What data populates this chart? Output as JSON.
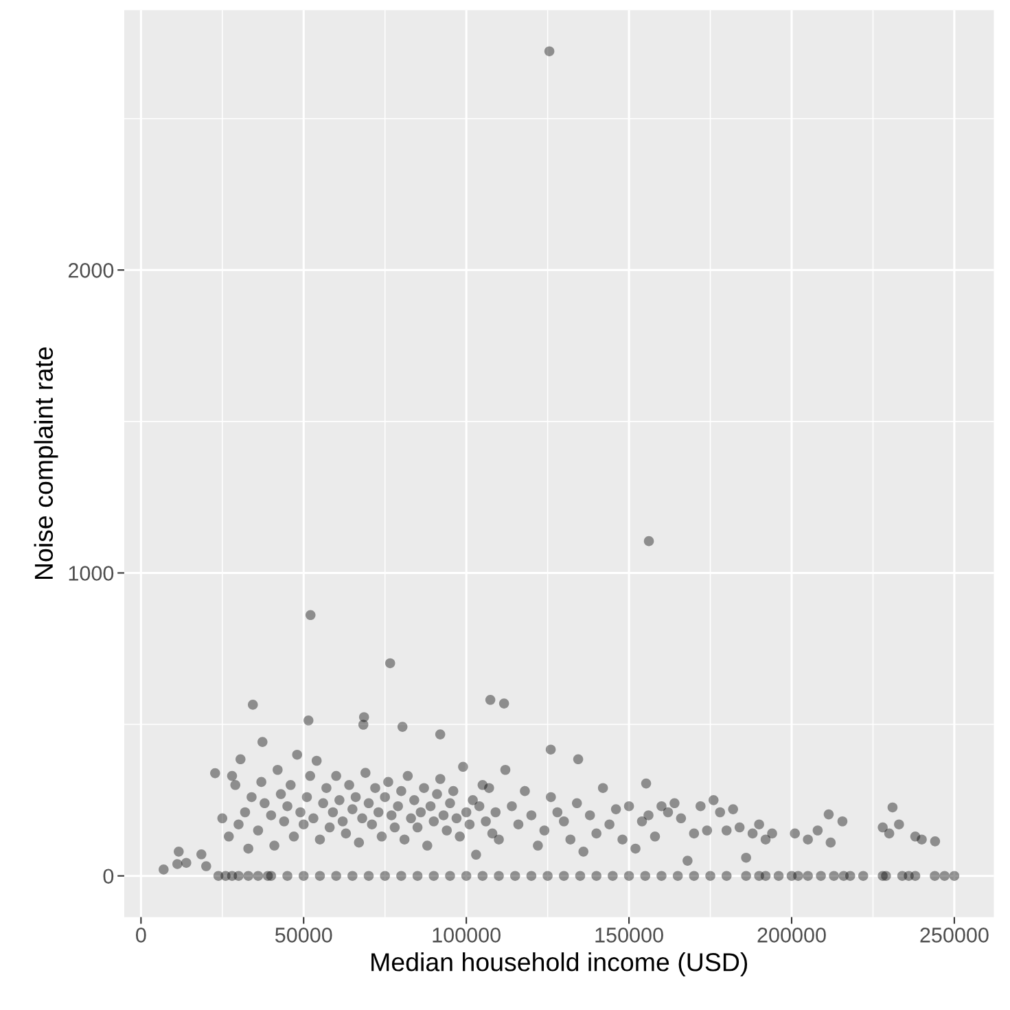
{
  "chart_data": {
    "type": "scatter",
    "xlabel": "Median household income (USD)",
    "ylabel": "Noise complaint rate",
    "xlim": [
      -5150,
      262150
    ],
    "ylim": [
      -136,
      2858
    ],
    "xticks": [
      0,
      {
        "value": 25000,
        "label": null
      },
      50000,
      {
        "value": 75000,
        "label": null
      },
      100000,
      {
        "value": 125000,
        "label": null
      },
      150000,
      {
        "value": 175000,
        "label": null
      },
      200000,
      {
        "value": 225000,
        "label": null
      },
      250000
    ],
    "yticks": [
      0,
      {
        "value": 500,
        "label": null
      },
      1000,
      {
        "value": 1500,
        "label": null
      },
      2000,
      {
        "value": 2500,
        "label": null
      }
    ],
    "grid": true,
    "marker": "circle",
    "series": [
      {
        "color": "#000000",
        "x": [
          125527,
          156118,
          52110,
          76582,
          107384,
          111603,
          34388,
          68565,
          51477,
          80380,
          68354,
          37342,
          91983,
          125949,
          134388,
          30591,
          22785,
          155274,
          231013,
          211392,
          215612,
          244093,
          6962,
          11603,
          13924,
          18565,
          20042,
          11181,
          25000,
          27000,
          28000,
          29000,
          30000,
          32000,
          33000,
          34000,
          36000,
          37000,
          38000,
          40000,
          41000,
          42000,
          43000,
          44000,
          45000,
          46000,
          47000,
          48000,
          49000,
          50000,
          51000,
          52000,
          53000,
          54000,
          55000,
          56000,
          57000,
          58000,
          59000,
          60000,
          61000,
          62000,
          63000,
          64000,
          65000,
          66000,
          67000,
          68000,
          69000,
          70000,
          71000,
          72000,
          73000,
          74000,
          75000,
          76000,
          77000,
          78000,
          79000,
          80000,
          81000,
          82000,
          83000,
          84000,
          85000,
          86000,
          87000,
          88000,
          89000,
          90000,
          91000,
          92000,
          93000,
          94000,
          95000,
          96000,
          97000,
          98000,
          99000,
          100000,
          101000,
          102000,
          103000,
          104000,
          105000,
          106000,
          107000,
          108000,
          109000,
          110000,
          112000,
          114000,
          116000,
          118000,
          120000,
          122000,
          124000,
          126000,
          128000,
          130000,
          132000,
          134000,
          136000,
          138000,
          140000,
          142000,
          144000,
          146000,
          148000,
          150000,
          152000,
          154000,
          156000,
          158000,
          160000,
          162000,
          164000,
          166000,
          168000,
          170000,
          172000,
          174000,
          176000,
          178000,
          180000,
          182000,
          184000,
          186000,
          188000,
          190000,
          192000,
          194000,
          201000,
          205000,
          208000,
          212000,
          228000,
          230000,
          233000,
          238000,
          240000,
          23800,
          26000,
          28000,
          30000,
          33000,
          36000,
          39000,
          40000,
          45000,
          50000,
          55000,
          60000,
          65000,
          70000,
          75000,
          80000,
          85000,
          90000,
          95000,
          100000,
          105000,
          110000,
          115000,
          120000,
          125000,
          130000,
          135000,
          140000,
          145000,
          150000,
          155000,
          160000,
          165000,
          170000,
          175000,
          180000,
          186000,
          190000,
          192000,
          196000,
          200000,
          202000,
          205000,
          209000,
          213000,
          216000,
          218000,
          222000,
          228000,
          229000,
          234000,
          236000,
          238000,
          244000,
          247000,
          250000
        ],
        "values": [
          2722,
          1105,
          861,
          702,
          581,
          569,
          565,
          524,
          513,
          492,
          499,
          442,
          467,
          417,
          385,
          385,
          339,
          305,
          226,
          203,
          180,
          114,
          21,
          80,
          43,
          71,
          32,
          39,
          190,
          130,
          330,
          300,
          170,
          210,
          90,
          260,
          150,
          310,
          240,
          200,
          100,
          350,
          270,
          180,
          230,
          300,
          130,
          400,
          210,
          170,
          260,
          330,
          190,
          380,
          120,
          240,
          290,
          160,
          210,
          330,
          250,
          180,
          140,
          300,
          220,
          260,
          110,
          190,
          340,
          240,
          170,
          290,
          210,
          130,
          260,
          310,
          200,
          160,
          230,
          280,
          120,
          330,
          190,
          250,
          160,
          210,
          290,
          100,
          230,
          180,
          270,
          320,
          200,
          150,
          240,
          280,
          190,
          130,
          360,
          210,
          170,
          250,
          70,
          230,
          300,
          180,
          290,
          140,
          210,
          120,
          350,
          230,
          170,
          280,
          200,
          100,
          150,
          260,
          210,
          180,
          120,
          240,
          80,
          200,
          140,
          290,
          170,
          220,
          120,
          230,
          90,
          180,
          200,
          130,
          230,
          210,
          240,
          190,
          50,
          140,
          230,
          150,
          250,
          210,
          150,
          220,
          160,
          60,
          140,
          170,
          120,
          140,
          140,
          120,
          150,
          110,
          160,
          140,
          170,
          130,
          120,
          0,
          0,
          0,
          0,
          0,
          0,
          0,
          0,
          0,
          0,
          0,
          0,
          0,
          0,
          0,
          0,
          0,
          0,
          0,
          0,
          0,
          0,
          0,
          0,
          0,
          0,
          0,
          0,
          0,
          0,
          0,
          0,
          0,
          0,
          0,
          0,
          0,
          0,
          0,
          0,
          0,
          0,
          0,
          0,
          0,
          0,
          0,
          0,
          0,
          0,
          0,
          0,
          0,
          0,
          0,
          0
        ]
      }
    ]
  }
}
